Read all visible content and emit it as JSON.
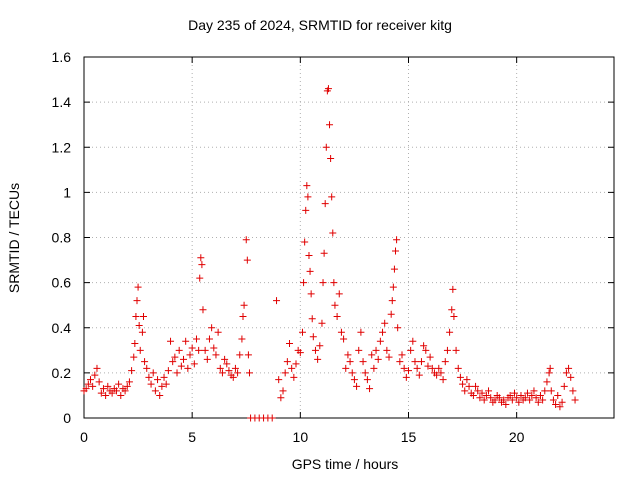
{
  "chart_data": {
    "type": "scatter",
    "title": "Day 235 of 2024, SRMTID for receiver kitg",
    "xlabel": "GPS time / hours",
    "ylabel": "SRMTID / TECUs",
    "xlim": [
      0,
      24.5
    ],
    "ylim": [
      0,
      1.6
    ],
    "xticks": [
      0,
      5,
      10,
      15,
      20
    ],
    "xtick_labels": [
      "0",
      "5",
      "10",
      "15",
      "20"
    ],
    "yticks": [
      0,
      0.2,
      0.4,
      0.6,
      0.8,
      1,
      1.2,
      1.4,
      1.6
    ],
    "ytick_labels": [
      "0",
      "0.2",
      "0.4",
      "0.6",
      "0.8",
      "1",
      "1.2",
      "1.4",
      "1.6"
    ],
    "grid": true,
    "marker": "+",
    "color": "#e00000",
    "series": [
      {
        "name": "SRMTID",
        "points": [
          [
            0.0,
            0.12
          ],
          [
            0.1,
            0.13
          ],
          [
            0.2,
            0.15
          ],
          [
            0.3,
            0.17
          ],
          [
            0.4,
            0.14
          ],
          [
            0.5,
            0.19
          ],
          [
            0.6,
            0.22
          ],
          [
            0.7,
            0.16
          ],
          [
            0.8,
            0.11
          ],
          [
            0.9,
            0.13
          ],
          [
            1.0,
            0.1
          ],
          [
            1.1,
            0.14
          ],
          [
            1.2,
            0.12
          ],
          [
            1.3,
            0.11
          ],
          [
            1.4,
            0.13
          ],
          [
            1.5,
            0.12
          ],
          [
            1.6,
            0.15
          ],
          [
            1.7,
            0.1
          ],
          [
            1.8,
            0.13
          ],
          [
            1.9,
            0.12
          ],
          [
            2.0,
            0.14
          ],
          [
            2.1,
            0.16
          ],
          [
            2.2,
            0.21
          ],
          [
            2.3,
            0.27
          ],
          [
            2.35,
            0.33
          ],
          [
            2.4,
            0.45
          ],
          [
            2.45,
            0.52
          ],
          [
            2.5,
            0.58
          ],
          [
            2.55,
            0.41
          ],
          [
            2.6,
            0.3
          ],
          [
            2.7,
            0.38
          ],
          [
            2.75,
            0.45
          ],
          [
            2.8,
            0.25
          ],
          [
            2.9,
            0.22
          ],
          [
            3.0,
            0.18
          ],
          [
            3.1,
            0.15
          ],
          [
            3.2,
            0.2
          ],
          [
            3.3,
            0.12
          ],
          [
            3.4,
            0.17
          ],
          [
            3.5,
            0.1
          ],
          [
            3.6,
            0.14
          ],
          [
            3.7,
            0.18
          ],
          [
            3.8,
            0.15
          ],
          [
            3.9,
            0.21
          ],
          [
            4.0,
            0.34
          ],
          [
            4.1,
            0.25
          ],
          [
            4.2,
            0.27
          ],
          [
            4.3,
            0.2
          ],
          [
            4.4,
            0.3
          ],
          [
            4.5,
            0.23
          ],
          [
            4.6,
            0.26
          ],
          [
            4.7,
            0.34
          ],
          [
            4.8,
            0.22
          ],
          [
            4.9,
            0.28
          ],
          [
            5.0,
            0.31
          ],
          [
            5.1,
            0.24
          ],
          [
            5.2,
            0.35
          ],
          [
            5.3,
            0.3
          ],
          [
            5.35,
            0.62
          ],
          [
            5.4,
            0.71
          ],
          [
            5.45,
            0.68
          ],
          [
            5.5,
            0.48
          ],
          [
            5.6,
            0.3
          ],
          [
            5.7,
            0.26
          ],
          [
            5.8,
            0.35
          ],
          [
            5.9,
            0.4
          ],
          [
            6.0,
            0.31
          ],
          [
            6.1,
            0.28
          ],
          [
            6.2,
            0.38
          ],
          [
            6.3,
            0.22
          ],
          [
            6.4,
            0.2
          ],
          [
            6.5,
            0.26
          ],
          [
            6.6,
            0.24
          ],
          [
            6.7,
            0.21
          ],
          [
            6.8,
            0.19
          ],
          [
            6.9,
            0.18
          ],
          [
            7.0,
            0.22
          ],
          [
            7.1,
            0.2
          ],
          [
            7.2,
            0.28
          ],
          [
            7.3,
            0.35
          ],
          [
            7.35,
            0.45
          ],
          [
            7.4,
            0.5
          ],
          [
            7.5,
            0.79
          ],
          [
            7.55,
            0.7
          ],
          [
            7.6,
            0.28
          ],
          [
            7.65,
            0.2
          ],
          [
            7.7,
            0.0
          ],
          [
            7.9,
            0.0
          ],
          [
            8.1,
            0.0
          ],
          [
            8.3,
            0.0
          ],
          [
            8.5,
            0.0
          ],
          [
            8.7,
            0.0
          ],
          [
            8.9,
            0.52
          ],
          [
            9.0,
            0.17
          ],
          [
            9.1,
            0.09
          ],
          [
            9.2,
            0.12
          ],
          [
            9.3,
            0.2
          ],
          [
            9.4,
            0.25
          ],
          [
            9.5,
            0.33
          ],
          [
            9.6,
            0.22
          ],
          [
            9.7,
            0.18
          ],
          [
            9.8,
            0.24
          ],
          [
            9.9,
            0.3
          ],
          [
            10.0,
            0.29
          ],
          [
            10.1,
            0.38
          ],
          [
            10.15,
            0.6
          ],
          [
            10.2,
            0.78
          ],
          [
            10.25,
            0.92
          ],
          [
            10.3,
            1.03
          ],
          [
            10.35,
            0.98
          ],
          [
            10.4,
            0.72
          ],
          [
            10.45,
            0.65
          ],
          [
            10.5,
            0.55
          ],
          [
            10.55,
            0.44
          ],
          [
            10.6,
            0.36
          ],
          [
            10.7,
            0.3
          ],
          [
            10.8,
            0.26
          ],
          [
            10.9,
            0.32
          ],
          [
            11.0,
            0.42
          ],
          [
            11.05,
            0.6
          ],
          [
            11.1,
            0.73
          ],
          [
            11.15,
            0.95
          ],
          [
            11.2,
            1.2
          ],
          [
            11.25,
            1.45
          ],
          [
            11.3,
            1.46
          ],
          [
            11.35,
            1.3
          ],
          [
            11.4,
            1.15
          ],
          [
            11.45,
            0.98
          ],
          [
            11.5,
            0.82
          ],
          [
            11.55,
            0.6
          ],
          [
            11.6,
            0.5
          ],
          [
            11.7,
            0.45
          ],
          [
            11.8,
            0.55
          ],
          [
            11.9,
            0.38
          ],
          [
            12.0,
            0.35
          ],
          [
            12.1,
            0.22
          ],
          [
            12.2,
            0.28
          ],
          [
            12.3,
            0.25
          ],
          [
            12.4,
            0.2
          ],
          [
            12.5,
            0.17
          ],
          [
            12.6,
            0.14
          ],
          [
            12.7,
            0.3
          ],
          [
            12.8,
            0.38
          ],
          [
            12.9,
            0.25
          ],
          [
            13.0,
            0.2
          ],
          [
            13.1,
            0.17
          ],
          [
            13.2,
            0.13
          ],
          [
            13.3,
            0.28
          ],
          [
            13.4,
            0.22
          ],
          [
            13.5,
            0.3
          ],
          [
            13.6,
            0.26
          ],
          [
            13.7,
            0.34
          ],
          [
            13.8,
            0.38
          ],
          [
            13.9,
            0.42
          ],
          [
            14.0,
            0.3
          ],
          [
            14.1,
            0.27
          ],
          [
            14.2,
            0.46
          ],
          [
            14.25,
            0.52
          ],
          [
            14.3,
            0.58
          ],
          [
            14.35,
            0.66
          ],
          [
            14.4,
            0.74
          ],
          [
            14.45,
            0.79
          ],
          [
            14.5,
            0.4
          ],
          [
            14.6,
            0.25
          ],
          [
            14.7,
            0.28
          ],
          [
            14.8,
            0.22
          ],
          [
            14.9,
            0.18
          ],
          [
            15.0,
            0.21
          ],
          [
            15.1,
            0.3
          ],
          [
            15.2,
            0.34
          ],
          [
            15.3,
            0.25
          ],
          [
            15.4,
            0.22
          ],
          [
            15.5,
            0.19
          ],
          [
            15.6,
            0.25
          ],
          [
            15.7,
            0.32
          ],
          [
            15.8,
            0.3
          ],
          [
            15.9,
            0.23
          ],
          [
            16.0,
            0.27
          ],
          [
            16.1,
            0.22
          ],
          [
            16.2,
            0.2
          ],
          [
            16.3,
            0.19
          ],
          [
            16.4,
            0.22
          ],
          [
            16.5,
            0.2
          ],
          [
            16.6,
            0.17
          ],
          [
            16.7,
            0.25
          ],
          [
            16.8,
            0.3
          ],
          [
            16.9,
            0.38
          ],
          [
            17.0,
            0.48
          ],
          [
            17.05,
            0.57
          ],
          [
            17.1,
            0.45
          ],
          [
            17.2,
            0.3
          ],
          [
            17.3,
            0.22
          ],
          [
            17.4,
            0.18
          ],
          [
            17.5,
            0.15
          ],
          [
            17.6,
            0.12
          ],
          [
            17.7,
            0.17
          ],
          [
            17.8,
            0.14
          ],
          [
            17.9,
            0.11
          ],
          [
            18.0,
            0.1
          ],
          [
            18.1,
            0.14
          ],
          [
            18.2,
            0.12
          ],
          [
            18.3,
            0.09
          ],
          [
            18.4,
            0.11
          ],
          [
            18.5,
            0.08
          ],
          [
            18.6,
            0.1
          ],
          [
            18.7,
            0.12
          ],
          [
            18.8,
            0.09
          ],
          [
            18.9,
            0.07
          ],
          [
            19.0,
            0.08
          ],
          [
            19.1,
            0.1
          ],
          [
            19.2,
            0.09
          ],
          [
            19.3,
            0.07
          ],
          [
            19.4,
            0.08
          ],
          [
            19.5,
            0.06
          ],
          [
            19.6,
            0.09
          ],
          [
            19.7,
            0.1
          ],
          [
            19.8,
            0.08
          ],
          [
            19.9,
            0.11
          ],
          [
            20.0,
            0.09
          ],
          [
            20.1,
            0.07
          ],
          [
            20.2,
            0.1
          ],
          [
            20.3,
            0.08
          ],
          [
            20.4,
            0.09
          ],
          [
            20.5,
            0.11
          ],
          [
            20.6,
            0.08
          ],
          [
            20.7,
            0.1
          ],
          [
            20.8,
            0.12
          ],
          [
            20.9,
            0.09
          ],
          [
            21.0,
            0.07
          ],
          [
            21.1,
            0.1
          ],
          [
            21.2,
            0.08
          ],
          [
            21.3,
            0.12
          ],
          [
            21.4,
            0.16
          ],
          [
            21.5,
            0.2
          ],
          [
            21.55,
            0.22
          ],
          [
            21.6,
            0.12
          ],
          [
            21.7,
            0.08
          ],
          [
            21.8,
            0.06
          ],
          [
            21.9,
            0.1
          ],
          [
            22.0,
            0.05
          ],
          [
            22.1,
            0.07
          ],
          [
            22.2,
            0.14
          ],
          [
            22.3,
            0.2
          ],
          [
            22.4,
            0.22
          ],
          [
            22.5,
            0.18
          ],
          [
            22.6,
            0.12
          ],
          [
            22.7,
            0.08
          ]
        ]
      }
    ]
  }
}
